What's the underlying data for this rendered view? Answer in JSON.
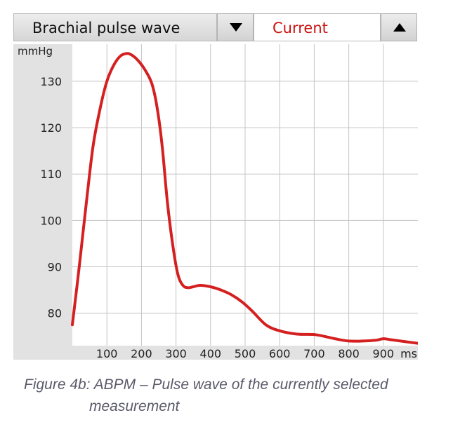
{
  "toolbar": {
    "selector_label": "Brachial pulse wave",
    "current_label": "Current",
    "down_icon": "triangle-down-icon",
    "up_icon": "triangle-up-icon"
  },
  "caption": {
    "line1": "Figure 4b: ABPM – Pulse wave of the currently   selected",
    "line2": "measurement"
  },
  "chart_data": {
    "type": "line",
    "title": "",
    "xlabel": "ms",
    "ylabel": "mmHg",
    "xlim": [
      0,
      1000
    ],
    "ylim": [
      73,
      138
    ],
    "x_ticks": [
      100,
      200,
      300,
      400,
      500,
      600,
      700,
      800,
      900
    ],
    "y_ticks": [
      80,
      90,
      100,
      110,
      120,
      130
    ],
    "grid": true,
    "line_color": "#d42020",
    "series": [
      {
        "x": [
          0,
          20,
          40,
          60,
          80,
          100,
          120,
          140,
          160,
          175,
          190,
          210,
          230,
          245,
          260,
          275,
          290,
          305,
          320,
          335,
          350,
          370,
          400,
          430,
          460,
          490,
          520,
          560,
          600,
          650,
          700,
          730,
          760,
          800,
          840,
          880,
          900,
          920,
          950,
          1000
        ],
        "y": [
          77.5,
          90,
          103.5,
          116,
          124,
          130,
          133.5,
          135.5,
          136,
          135.5,
          134.5,
          132.5,
          129.5,
          124.5,
          116,
          104,
          95,
          88.5,
          86,
          85.5,
          85.7,
          86,
          85.7,
          85,
          84,
          82.5,
          80.5,
          77.5,
          76.2,
          75.5,
          75.4,
          75,
          74.5,
          74,
          74,
          74.2,
          74.5,
          74.3,
          74,
          73.5
        ]
      }
    ]
  }
}
